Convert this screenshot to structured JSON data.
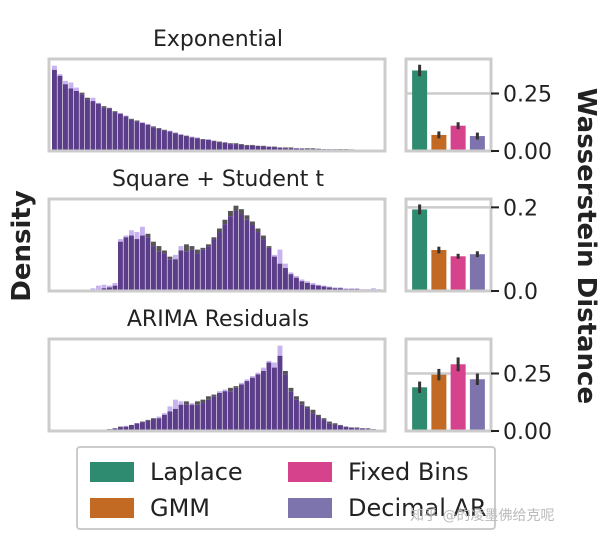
{
  "y_axis_label": "Density",
  "right_axis_label": "Wasserstein Distance",
  "watermark": "知乎 @的凌墨佛给克呢",
  "legend": [
    {
      "label": "Laplace",
      "color": "#2e8b6f"
    },
    {
      "label": "GMM",
      "color": "#c26a24"
    },
    {
      "label": "Fixed Bins",
      "color": "#d6428b"
    },
    {
      "label": "Decimal AR",
      "color": "#7d73ad"
    }
  ],
  "colors": {
    "real": "#555555",
    "generated": "#c8b3f0",
    "overlap": "#5b3d8a",
    "frame": "#cccccc",
    "grid": "#cccccc",
    "error": "#333333"
  },
  "chart_data": [
    {
      "type": "bar",
      "title": "Exponential",
      "xlabel": "",
      "ylabel": "Density",
      "histogram_real": [
        0.95,
        0.88,
        0.78,
        0.73,
        0.7,
        0.68,
        0.62,
        0.58,
        0.55,
        0.52,
        0.5,
        0.46,
        0.43,
        0.4,
        0.37,
        0.35,
        0.32,
        0.3,
        0.28,
        0.26,
        0.24,
        0.22,
        0.2,
        0.18,
        0.17,
        0.15,
        0.14,
        0.13,
        0.12,
        0.11,
        0.1,
        0.09,
        0.08,
        0.08,
        0.07,
        0.06,
        0.06,
        0.05,
        0.05,
        0.04,
        0.04,
        0.03,
        0.03,
        0.03,
        0.02,
        0.02,
        0.02,
        0.02,
        0.015,
        0.01,
        0.01,
        0.01,
        0.01,
        0.01,
        0.008,
        0.005,
        0.005,
        0.004,
        0.003,
        0.002
      ],
      "histogram_generated": [
        1.0,
        0.9,
        0.82,
        0.8,
        0.74,
        0.66,
        0.6,
        0.62,
        0.56,
        0.5,
        0.49,
        0.45,
        0.44,
        0.41,
        0.36,
        0.34,
        0.33,
        0.31,
        0.27,
        0.25,
        0.23,
        0.23,
        0.21,
        0.19,
        0.16,
        0.16,
        0.15,
        0.12,
        0.13,
        0.1,
        0.09,
        0.09,
        0.07,
        0.07,
        0.06,
        0.05,
        0.05,
        0.05,
        0.04,
        0.04,
        0.03,
        0.03,
        0.02,
        0.02,
        0.02,
        0.015,
        0.01,
        0.01,
        0.01,
        0.01,
        0.008,
        0.008,
        0.005,
        0.005,
        0.004,
        0.003,
        0.002,
        0.002,
        0.001,
        0.001
      ]
    },
    {
      "type": "bar",
      "title": "Square + Student t",
      "xlabel": "",
      "ylabel": "Density",
      "histogram_real": [
        0,
        0,
        0,
        0,
        0,
        0,
        0,
        0,
        0,
        0.02,
        0.03,
        0.05,
        0.55,
        0.6,
        0.62,
        0.58,
        0.62,
        0.64,
        0.55,
        0.5,
        0.45,
        0.38,
        0.35,
        0.45,
        0.52,
        0.5,
        0.46,
        0.48,
        0.52,
        0.6,
        0.7,
        0.8,
        0.9,
        0.96,
        0.92,
        0.85,
        0.78,
        0.7,
        0.62,
        0.5,
        0.38,
        0.3,
        0.25,
        0.18,
        0.14,
        0.1,
        0.08,
        0.06,
        0.05,
        0.04,
        0.03,
        0.02,
        0.02,
        0.01,
        0.01,
        0.01,
        0,
        0,
        0,
        0
      ],
      "histogram_generated": [
        0,
        0,
        0,
        0,
        0,
        0,
        0,
        0.02,
        0.05,
        0.06,
        0.05,
        0.08,
        0.58,
        0.62,
        0.68,
        0.66,
        0.72,
        0.6,
        0.5,
        0.44,
        0.42,
        0.35,
        0.4,
        0.5,
        0.44,
        0.46,
        0.42,
        0.46,
        0.5,
        0.58,
        0.66,
        0.75,
        0.84,
        0.9,
        0.86,
        0.8,
        0.74,
        0.66,
        0.58,
        0.48,
        0.4,
        0.46,
        0.3,
        0.2,
        0.16,
        0.12,
        0.1,
        0.08,
        0.06,
        0.05,
        0.04,
        0.03,
        0.03,
        0.02,
        0.02,
        0.02,
        0.01,
        0.01,
        0.02,
        0.01
      ]
    },
    {
      "type": "bar",
      "title": "ARIMA Residuals",
      "xlabel": "",
      "ylabel": "Density",
      "histogram_real": [
        0,
        0,
        0,
        0,
        0,
        0,
        0,
        0,
        0,
        0,
        0.01,
        0.02,
        0.04,
        0.04,
        0.06,
        0.08,
        0.1,
        0.12,
        0.14,
        0.14,
        0.18,
        0.22,
        0.25,
        0.3,
        0.34,
        0.3,
        0.34,
        0.36,
        0.4,
        0.42,
        0.44,
        0.46,
        0.5,
        0.52,
        0.54,
        0.58,
        0.62,
        0.66,
        0.7,
        0.8,
        0.74,
        0.88,
        0.7,
        0.5,
        0.4,
        0.34,
        0.28,
        0.24,
        0.18,
        0.14,
        0.1,
        0.08,
        0.06,
        0.04,
        0.03,
        0.03,
        0.02,
        0.02,
        0.01,
        0
      ],
      "histogram_generated": [
        0,
        0,
        0,
        0,
        0,
        0,
        0,
        0,
        0,
        0,
        0.01,
        0.02,
        0.03,
        0.05,
        0.06,
        0.08,
        0.09,
        0.11,
        0.13,
        0.16,
        0.2,
        0.28,
        0.36,
        0.34,
        0.3,
        0.32,
        0.3,
        0.32,
        0.36,
        0.4,
        0.46,
        0.48,
        0.46,
        0.5,
        0.56,
        0.6,
        0.64,
        0.68,
        0.74,
        0.82,
        0.8,
        1.0,
        0.66,
        0.46,
        0.36,
        0.3,
        0.26,
        0.2,
        0.16,
        0.12,
        0.08,
        0.06,
        0.05,
        0.04,
        0.03,
        0.02,
        0.02,
        0.01,
        0.01,
        0
      ]
    },
    {
      "type": "bar",
      "title": "",
      "ylabel": "Wasserstein Distance",
      "categories": [
        "Laplace",
        "GMM",
        "Fixed Bins",
        "Decimal AR"
      ],
      "values": [
        0.35,
        0.07,
        0.11,
        0.065
      ],
      "error": [
        0.025,
        0.015,
        0.015,
        0.015
      ],
      "ylim": [
        0,
        0.4
      ],
      "yticks": [
        0.0,
        0.25
      ],
      "ytick_labels": [
        "0.00",
        "0.25"
      ]
    },
    {
      "type": "bar",
      "title": "",
      "ylabel": "Wasserstein Distance",
      "categories": [
        "Laplace",
        "GMM",
        "Fixed Bins",
        "Decimal AR"
      ],
      "values": [
        0.195,
        0.098,
        0.083,
        0.088
      ],
      "error": [
        0.012,
        0.008,
        0.006,
        0.007
      ],
      "ylim": [
        0,
        0.22
      ],
      "yticks": [
        0.0,
        0.2
      ],
      "ytick_labels": [
        "0.0",
        "0.2"
      ]
    },
    {
      "type": "bar",
      "title": "",
      "ylabel": "Wasserstein Distance",
      "categories": [
        "Laplace",
        "GMM",
        "Fixed Bins",
        "Decimal AR"
      ],
      "values": [
        0.19,
        0.245,
        0.29,
        0.225
      ],
      "error": [
        0.025,
        0.025,
        0.03,
        0.025
      ],
      "ylim": [
        0,
        0.4
      ],
      "yticks": [
        0.0,
        0.25
      ],
      "ytick_labels": [
        "0.00",
        "0.25"
      ]
    }
  ]
}
